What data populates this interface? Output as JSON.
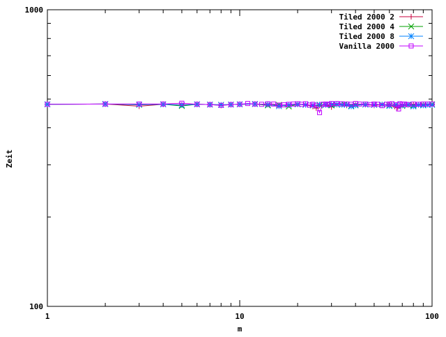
{
  "chart_data": {
    "type": "line",
    "title": "",
    "xlabel": "m",
    "ylabel": "Zeit",
    "x_scale": "log",
    "y_scale": "log",
    "xlim": [
      1,
      100
    ],
    "ylim": [
      100,
      1000
    ],
    "x_ticks": [
      "1",
      "10",
      "100"
    ],
    "y_ticks": [
      "100",
      "1000"
    ],
    "grid": false,
    "legend_position": "top-right",
    "series": [
      {
        "name": "Tiled 2000 2",
        "color": "#c8003c",
        "marker": "plus",
        "x": [
          1,
          2,
          3,
          4,
          5,
          6,
          7,
          8,
          9,
          10,
          12,
          14,
          16,
          18,
          20,
          22,
          24,
          25,
          26,
          28,
          30,
          32,
          34,
          36,
          40,
          45,
          50,
          55,
          60,
          64,
          66,
          70,
          75,
          80,
          90,
          100
        ],
        "values": [
          480,
          481,
          473,
          480,
          478,
          480,
          479,
          476,
          479,
          480,
          481,
          479,
          476,
          478,
          480,
          478,
          472,
          466,
          476,
          478,
          470,
          479,
          480,
          476,
          478,
          479,
          476,
          479,
          476,
          472,
          468,
          476,
          478,
          479,
          478,
          480
        ]
      },
      {
        "name": "Tiled 2000 4",
        "color": "#00a000",
        "marker": "cross",
        "x": [
          1,
          2,
          3,
          4,
          5,
          6,
          7,
          8,
          9,
          10,
          12,
          14,
          16,
          18,
          20,
          22,
          24,
          26,
          28,
          30,
          32,
          35,
          38,
          40,
          45,
          50,
          55,
          60,
          65,
          70,
          75,
          80,
          90,
          100
        ],
        "values": [
          480,
          481,
          478,
          480,
          474,
          480,
          479,
          478,
          479,
          480,
          481,
          476,
          478,
          472,
          480,
          478,
          476,
          476,
          478,
          476,
          479,
          480,
          474,
          478,
          479,
          478,
          479,
          476,
          478,
          474,
          478,
          476,
          478,
          480
        ]
      },
      {
        "name": "Tiled 2000 8",
        "color": "#0080ff",
        "marker": "star",
        "x": [
          1,
          2,
          3,
          4,
          5,
          6,
          7,
          8,
          9,
          10,
          12,
          14,
          16,
          18,
          20,
          22,
          24,
          26,
          28,
          30,
          32,
          34,
          36,
          38,
          40,
          45,
          50,
          55,
          60,
          65,
          70,
          75,
          80,
          85,
          90,
          95,
          100
        ],
        "values": [
          480,
          481,
          479,
          480,
          477,
          480,
          479,
          478,
          479,
          480,
          481,
          479,
          473,
          478,
          480,
          478,
          476,
          479,
          478,
          479,
          480,
          478,
          479,
          472,
          476,
          479,
          478,
          479,
          474,
          478,
          476,
          479,
          472,
          478,
          476,
          478,
          478
        ]
      },
      {
        "name": "Vanilla 2000",
        "color": "#c000ff",
        "marker": "box",
        "x": [
          1,
          2,
          3,
          4,
          5,
          6,
          7,
          8,
          9,
          10,
          11,
          12,
          13,
          14,
          15,
          16,
          17,
          18,
          19,
          20,
          21,
          22,
          23,
          24,
          25,
          26,
          27,
          28,
          29,
          30,
          32,
          34,
          36,
          38,
          40,
          42,
          45,
          48,
          50,
          52,
          55,
          58,
          60,
          62,
          65,
          67,
          68,
          70,
          72,
          75,
          80,
          85,
          90,
          95,
          100
        ],
        "values": [
          480,
          481,
          481,
          481,
          484,
          480,
          479,
          476,
          479,
          480,
          483,
          481,
          480,
          482,
          481,
          477,
          478,
          480,
          481,
          482,
          480,
          482,
          477,
          480,
          476,
          450,
          480,
          481,
          479,
          483,
          483,
          482,
          481,
          480,
          483,
          481,
          481,
          479,
          481,
          480,
          475,
          480,
          481,
          482,
          478,
          463,
          482,
          480,
          481,
          479,
          481,
          480,
          481,
          481,
          481
        ]
      }
    ]
  }
}
